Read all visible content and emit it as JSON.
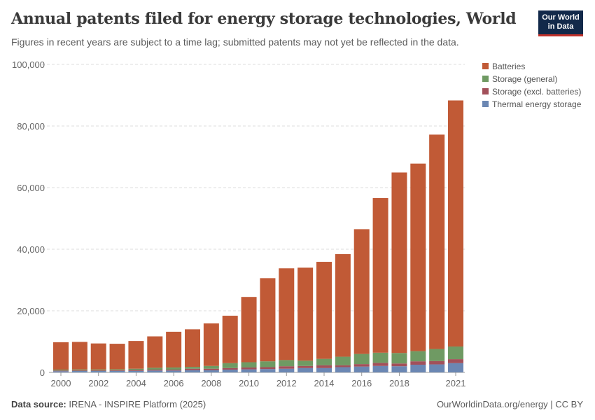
{
  "header": {
    "title": "Annual patents filed for energy storage technologies, World",
    "subtitle": "Figures in recent years are subject to a time lag; submitted patents may not yet be reflected in the data.",
    "logo": "Our World in Data"
  },
  "footer": {
    "source_label": "Data source:",
    "source": "IRENA - INSPIRE Platform (2025)",
    "right": "OurWorldinData.org/energy | CC BY"
  },
  "chart_data": {
    "type": "bar",
    "stacked": true,
    "title": "Annual patents filed for energy storage technologies, World",
    "grid": true,
    "legend_position": "top-right",
    "ylim": [
      0,
      100000
    ],
    "yticks": [
      "0",
      "20,000",
      "40,000",
      "60,000",
      "80,000",
      "100,000"
    ],
    "xticks": [
      "2000",
      "2002",
      "2004",
      "2006",
      "2008",
      "2010",
      "2012",
      "2014",
      "2016",
      "2018",
      "2021"
    ],
    "categories": [
      2000,
      2001,
      2002,
      2003,
      2004,
      2005,
      2006,
      2007,
      2008,
      2009,
      2010,
      2011,
      2012,
      2013,
      2014,
      2015,
      2016,
      2017,
      2018,
      2019,
      2020,
      2021
    ],
    "series": [
      {
        "name": "Thermal energy storage",
        "color": "#6b87b3",
        "values": [
          400,
          450,
          450,
          500,
          500,
          600,
          600,
          700,
          700,
          900,
          1000,
          1100,
          1200,
          1400,
          1400,
          1700,
          1900,
          2100,
          2000,
          2500,
          2600,
          3000
        ]
      },
      {
        "name": "Storage (excl. batteries)",
        "color": "#a2505a",
        "values": [
          200,
          200,
          200,
          200,
          300,
          300,
          300,
          500,
          500,
          500,
          600,
          600,
          800,
          700,
          900,
          600,
          800,
          1000,
          900,
          1100,
          1100,
          1300
        ]
      },
      {
        "name": "Storage (general)",
        "color": "#6f9a63",
        "values": [
          300,
          300,
          300,
          300,
          400,
          600,
          700,
          600,
          900,
          1600,
          1700,
          1900,
          2000,
          1700,
          2100,
          2800,
          3300,
          3300,
          3400,
          3300,
          3900,
          4100
        ]
      },
      {
        "name": "Batteries",
        "color": "#c15a36",
        "values": [
          8900,
          8950,
          8450,
          8300,
          9000,
          10200,
          11600,
          12200,
          13800,
          15400,
          21200,
          27000,
          29800,
          30200,
          31500,
          33300,
          40500,
          50200,
          58600,
          60900,
          69600,
          79900
        ]
      }
    ]
  }
}
